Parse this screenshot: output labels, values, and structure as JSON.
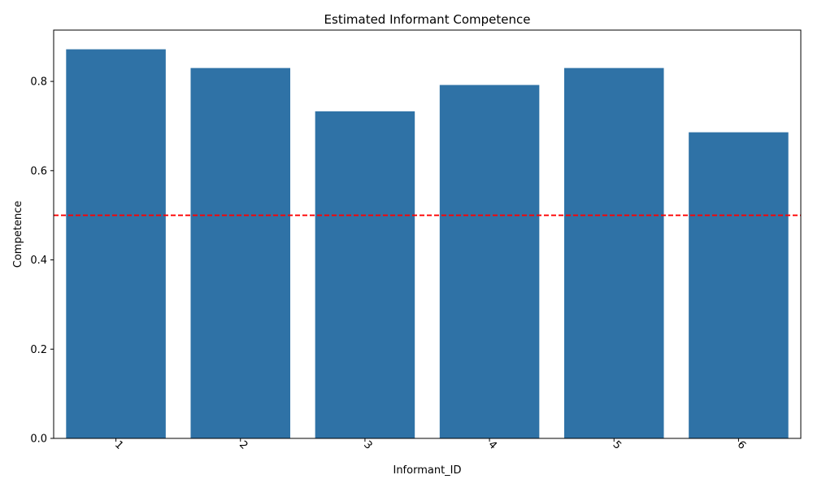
{
  "chart_data": {
    "type": "bar",
    "title": "Estimated Informant Competence",
    "xlabel": "Informant_ID",
    "ylabel": "Competence",
    "categories": [
      "1",
      "2",
      "3",
      "4",
      "5",
      "6"
    ],
    "values": [
      0.872,
      0.83,
      0.733,
      0.792,
      0.83,
      0.686
    ],
    "ylim": [
      0,
      0.915
    ],
    "yticks": [
      "0.0",
      "0.2",
      "0.4",
      "0.6",
      "0.8"
    ],
    "ytick_values": [
      0,
      0.2,
      0.4,
      0.6,
      0.8
    ],
    "reference_line": {
      "y": 0.5,
      "style": "dashed",
      "color": "#ff0000"
    },
    "bar_color": "#2f72a6",
    "x_tick_rotation": 45,
    "grid": false,
    "legend": "none"
  }
}
